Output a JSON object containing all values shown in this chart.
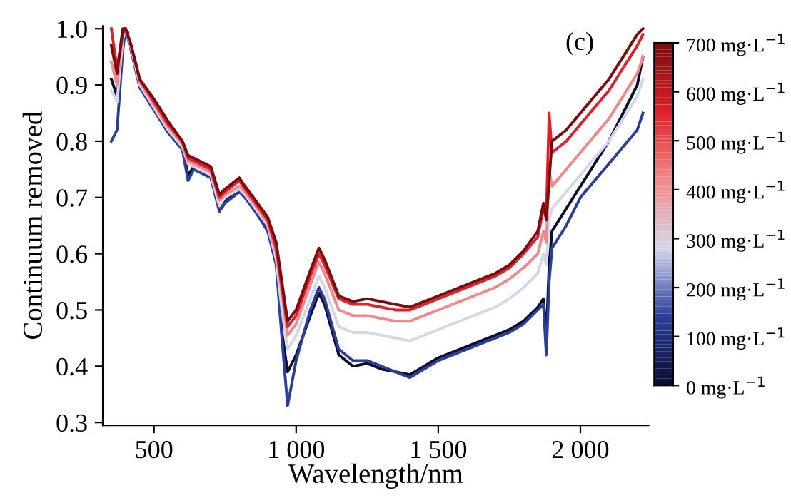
{
  "chart_data": {
    "type": "line",
    "xlabel": "Wavelength/nm",
    "ylabel": "Continuum removed",
    "annotations": [
      "(c)"
    ],
    "x": [
      350,
      370,
      390,
      400,
      420,
      450,
      500,
      550,
      600,
      620,
      640,
      680,
      700,
      730,
      750,
      800,
      820,
      850,
      900,
      930,
      950,
      970,
      1000,
      1050,
      1080,
      1100,
      1150,
      1200,
      1250,
      1300,
      1350,
      1400,
      1450,
      1500,
      1600,
      1650,
      1700,
      1750,
      1800,
      1850,
      1870,
      1880,
      1890,
      1900,
      1950,
      2000,
      2050,
      2100,
      2150,
      2200,
      2220
    ],
    "series": [
      {
        "color": "#0c0c2e",
        "values": [
          0.91,
          0.88,
          0.97,
          1.0,
          0.965,
          0.9,
          0.86,
          0.82,
          0.79,
          0.74,
          0.755,
          0.745,
          0.74,
          0.68,
          0.695,
          0.715,
          0.7,
          0.68,
          0.645,
          0.59,
          0.46,
          0.39,
          0.42,
          0.49,
          0.53,
          0.51,
          0.42,
          0.4,
          0.405,
          0.395,
          0.39,
          0.385,
          0.4,
          0.415,
          0.435,
          0.445,
          0.455,
          0.465,
          0.48,
          0.505,
          0.52,
          0.45,
          0.58,
          0.64,
          0.68,
          0.72,
          0.76,
          0.8,
          0.85,
          0.9,
          0.95
        ]
      },
      {
        "color": "#2a3e9c",
        "values": [
          0.8,
          0.82,
          0.96,
          1.0,
          0.96,
          0.895,
          0.855,
          0.815,
          0.785,
          0.73,
          0.75,
          0.74,
          0.735,
          0.675,
          0.69,
          0.71,
          0.7,
          0.68,
          0.64,
          0.58,
          0.45,
          0.33,
          0.41,
          0.5,
          0.54,
          0.52,
          0.43,
          0.41,
          0.41,
          0.4,
          0.39,
          0.38,
          0.395,
          0.41,
          0.43,
          0.44,
          0.45,
          0.46,
          0.475,
          0.5,
          0.51,
          0.42,
          0.55,
          0.61,
          0.65,
          0.7,
          0.73,
          0.76,
          0.79,
          0.82,
          0.85
        ]
      },
      {
        "color": "#d4d6ea",
        "values": [
          0.89,
          0.87,
          0.98,
          1.0,
          0.965,
          0.9,
          0.86,
          0.82,
          0.79,
          0.76,
          0.755,
          0.745,
          0.74,
          0.685,
          0.7,
          0.715,
          0.705,
          0.685,
          0.65,
          0.59,
          0.5,
          0.43,
          0.455,
          0.52,
          0.56,
          0.54,
          0.47,
          0.46,
          0.46,
          0.455,
          0.45,
          0.445,
          0.455,
          0.465,
          0.485,
          0.495,
          0.505,
          0.52,
          0.54,
          0.565,
          0.6,
          0.58,
          0.66,
          0.68,
          0.71,
          0.74,
          0.77,
          0.8,
          0.84,
          0.88,
          0.91
        ]
      },
      {
        "color": "#f08a8a",
        "values": [
          0.94,
          0.9,
          0.99,
          1.0,
          0.97,
          0.905,
          0.865,
          0.825,
          0.795,
          0.765,
          0.76,
          0.75,
          0.745,
          0.695,
          0.705,
          0.72,
          0.71,
          0.69,
          0.655,
          0.6,
          0.53,
          0.455,
          0.475,
          0.545,
          0.585,
          0.565,
          0.5,
          0.49,
          0.49,
          0.485,
          0.48,
          0.48,
          0.49,
          0.5,
          0.52,
          0.53,
          0.54,
          0.555,
          0.575,
          0.6,
          0.64,
          0.62,
          0.75,
          0.72,
          0.75,
          0.78,
          0.81,
          0.84,
          0.88,
          0.92,
          0.95
        ]
      },
      {
        "color": "#e0202a",
        "values": [
          1.0,
          0.93,
          0.99,
          1.0,
          0.97,
          0.91,
          0.87,
          0.83,
          0.8,
          0.77,
          0.765,
          0.755,
          0.75,
          0.7,
          0.71,
          0.73,
          0.715,
          0.695,
          0.66,
          0.61,
          0.54,
          0.47,
          0.49,
          0.56,
          0.6,
          0.58,
          0.52,
          0.51,
          0.51,
          0.505,
          0.5,
          0.5,
          0.51,
          0.52,
          0.54,
          0.55,
          0.56,
          0.575,
          0.6,
          0.63,
          0.68,
          0.67,
          0.85,
          0.78,
          0.8,
          0.83,
          0.86,
          0.89,
          0.93,
          0.97,
          0.99
        ]
      },
      {
        "color": "#7a0c10",
        "values": [
          0.97,
          0.92,
          1.0,
          1.0,
          0.97,
          0.91,
          0.875,
          0.835,
          0.8,
          0.775,
          0.77,
          0.76,
          0.755,
          0.705,
          0.715,
          0.735,
          0.72,
          0.7,
          0.665,
          0.62,
          0.55,
          0.48,
          0.5,
          0.57,
          0.61,
          0.59,
          0.525,
          0.515,
          0.52,
          0.515,
          0.51,
          0.505,
          0.515,
          0.525,
          0.545,
          0.555,
          0.565,
          0.58,
          0.605,
          0.64,
          0.69,
          0.66,
          0.73,
          0.8,
          0.82,
          0.85,
          0.88,
          0.91,
          0.95,
          0.99,
          1.0
        ]
      }
    ],
    "xlim": [
      320,
      2240
    ],
    "ylim": [
      0.295,
      1.005
    ],
    "xticks": [
      500,
      {
        "value": 1000,
        "label": "1 000"
      },
      {
        "value": 1500,
        "label": "1 500"
      },
      {
        "value": 2000,
        "label": "2 000"
      }
    ],
    "yticks": [
      0.3,
      0.4,
      0.5,
      0.6,
      0.7,
      0.8,
      0.9,
      {
        "value": 1.0,
        "label": "1.0"
      }
    ],
    "clim": [
      0,
      700
    ],
    "cticks": [
      {
        "value": 0,
        "label": "0 mg·L$^{−1}$"
      },
      {
        "value": 100,
        "label": "100 mg·L$^{−1}$"
      },
      {
        "value": 200,
        "label": "200 mg·L$^{−1}$"
      },
      {
        "value": 300,
        "label": "300 mg·L$^{−1}$"
      },
      {
        "value": 400,
        "label": "400 mg·L$^{−1}$"
      },
      {
        "value": 500,
        "label": "500 mg·L$^{−1}$"
      },
      {
        "value": 600,
        "label": "600 mg·L$^{−1}$"
      },
      {
        "value": 700,
        "label": "700 mg·L$^{−1}$"
      }
    ],
    "grid": false,
    "legend": false,
    "marker": "none",
    "line_style": "solid"
  }
}
